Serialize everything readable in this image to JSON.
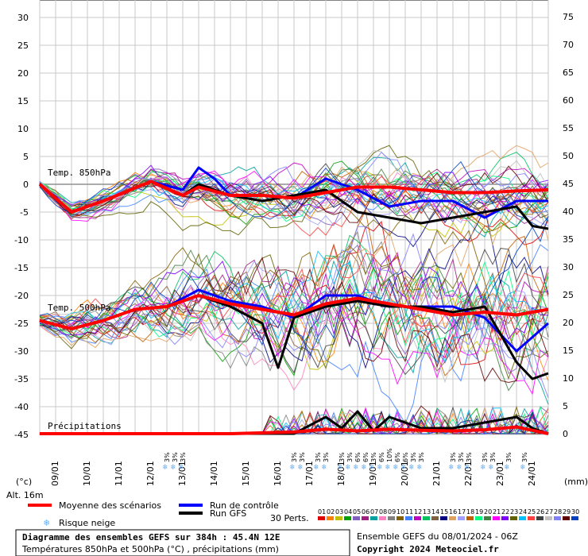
{
  "chart_data": {
    "type": "line",
    "left_axis": {
      "ticks": [
        30,
        25,
        20,
        15,
        10,
        5,
        0,
        -5,
        -10,
        -15,
        -20,
        -25,
        -30,
        -35,
        -40,
        -45
      ],
      "unit_label": "(°c)"
    },
    "right_axis": {
      "ticks": [
        75,
        70,
        65,
        60,
        55,
        50,
        45,
        40,
        35,
        30,
        25,
        20,
        15,
        10,
        5,
        0
      ],
      "unit_label": "(mm)"
    },
    "x_dates": [
      "09/01",
      "10/01",
      "11/01",
      "12/01",
      "13/01",
      "14/01",
      "15/01",
      "16/01",
      "17/01",
      "18/01",
      "19/01",
      "20/01",
      "21/01",
      "22/01",
      "23/01",
      "24/01"
    ],
    "altitude_label": "Alt. 16m",
    "section_labels": {
      "t850": "Temp. 850hPa",
      "t500": "Temp. 500hPa",
      "precip": "Précipitations"
    },
    "snow_risk": [
      {
        "day": 4.0,
        "text": "3%"
      },
      {
        "day": 4.25,
        "text": "3%"
      },
      {
        "day": 4.5,
        "text": "3%"
      },
      {
        "day": 8.0,
        "text": "3%"
      },
      {
        "day": 8.25,
        "text": "3%"
      },
      {
        "day": 8.75,
        "text": "3%"
      },
      {
        "day": 9.0,
        "text": "3%"
      },
      {
        "day": 9.5,
        "text": "3%"
      },
      {
        "day": 9.75,
        "text": "3%"
      },
      {
        "day": 10.0,
        "text": "6%"
      },
      {
        "day": 10.25,
        "text": "6%"
      },
      {
        "day": 10.5,
        "text": "3%"
      },
      {
        "day": 10.75,
        "text": "6%"
      },
      {
        "day": 11.0,
        "text": "10%"
      },
      {
        "day": 11.25,
        "text": "6%"
      },
      {
        "day": 11.5,
        "text": "6%"
      },
      {
        "day": 11.75,
        "text": "3%"
      },
      {
        "day": 12.0,
        "text": "3%"
      },
      {
        "day": 13.0,
        "text": "3%"
      },
      {
        "day": 13.25,
        "text": "3%"
      },
      {
        "day": 13.5,
        "text": "3%"
      },
      {
        "day": 14.0,
        "text": "3%"
      },
      {
        "day": 14.25,
        "text": "3%"
      },
      {
        "day": 14.75,
        "text": "3%"
      },
      {
        "day": 15.25,
        "text": "3%"
      }
    ],
    "series": [
      {
        "name": "Moyenne des scénarios",
        "color": "#ff0000",
        "key": "mean",
        "t850": [
          [
            0,
            0
          ],
          [
            1,
            -5
          ],
          [
            2,
            -3
          ],
          [
            3.5,
            0.5
          ],
          [
            4.5,
            -2
          ],
          [
            5,
            -0.5
          ],
          [
            6,
            -2
          ],
          [
            7,
            -2
          ],
          [
            8,
            -2.5
          ],
          [
            9,
            -1.5
          ],
          [
            10,
            -0.5
          ],
          [
            11,
            -0.5
          ],
          [
            12,
            -1
          ],
          [
            13,
            -1.5
          ],
          [
            14,
            -1.5
          ],
          [
            15,
            -1.2
          ],
          [
            16,
            -1
          ]
        ],
        "t500": [
          [
            0,
            -24.5
          ],
          [
            1,
            -26
          ],
          [
            2,
            -24.5
          ],
          [
            3,
            -22.5
          ],
          [
            4,
            -22
          ],
          [
            5,
            -20
          ],
          [
            6,
            -21.5
          ],
          [
            7,
            -22.5
          ],
          [
            8,
            -23.5
          ],
          [
            9,
            -21.5
          ],
          [
            10,
            -20.5
          ],
          [
            11,
            -21.5
          ],
          [
            12,
            -22.5
          ],
          [
            13,
            -23.5
          ],
          [
            14,
            -23
          ],
          [
            15,
            -23.5
          ],
          [
            16,
            -22.5
          ]
        ],
        "precip": [
          [
            0,
            0
          ],
          [
            6,
            0
          ],
          [
            8,
            0.3
          ],
          [
            9,
            0.8
          ],
          [
            10,
            0.5
          ],
          [
            11,
            0.8
          ],
          [
            12,
            0.6
          ],
          [
            13,
            0.5
          ],
          [
            14,
            0.7
          ],
          [
            15,
            1.2
          ],
          [
            16,
            0
          ]
        ]
      },
      {
        "name": "Run de contrôle",
        "color": "#0000ff",
        "key": "control",
        "t850": [
          [
            0,
            0
          ],
          [
            1,
            -5
          ],
          [
            2,
            -3
          ],
          [
            3.5,
            0.5
          ],
          [
            4.5,
            -1
          ],
          [
            5,
            3
          ],
          [
            5.5,
            1
          ],
          [
            6,
            -2
          ],
          [
            7,
            -2
          ],
          [
            8,
            -2.5
          ],
          [
            9,
            1
          ],
          [
            10,
            -1
          ],
          [
            11,
            -4
          ],
          [
            12,
            -3
          ],
          [
            13,
            -3
          ],
          [
            14,
            -6
          ],
          [
            15,
            -3
          ],
          [
            16,
            -3
          ]
        ],
        "t500": [
          [
            0,
            -24.5
          ],
          [
            1,
            -26
          ],
          [
            2,
            -24.5
          ],
          [
            3,
            -22.5
          ],
          [
            4,
            -22
          ],
          [
            5,
            -19
          ],
          [
            6,
            -21
          ],
          [
            7,
            -22
          ],
          [
            8,
            -24
          ],
          [
            9,
            -20
          ],
          [
            10,
            -20
          ],
          [
            11,
            -22
          ],
          [
            12,
            -22
          ],
          [
            13,
            -22
          ],
          [
            14,
            -24
          ],
          [
            15,
            -30
          ],
          [
            16,
            -25
          ]
        ]
      },
      {
        "name": "Run GFS",
        "color": "#000000",
        "key": "gfs",
        "t850": [
          [
            0,
            0
          ],
          [
            1,
            -5
          ],
          [
            2,
            -3
          ],
          [
            3.5,
            0.5
          ],
          [
            4.5,
            -2
          ],
          [
            5,
            0
          ],
          [
            6,
            -2
          ],
          [
            7,
            -3
          ],
          [
            8,
            -2
          ],
          [
            9,
            -1
          ],
          [
            10,
            -5
          ],
          [
            11,
            -6
          ],
          [
            12,
            -7
          ],
          [
            13,
            -6
          ],
          [
            14,
            -5
          ],
          [
            15,
            -4
          ],
          [
            15.5,
            -7.5
          ],
          [
            16,
            -8
          ]
        ],
        "t500": [
          [
            0,
            -24.5
          ],
          [
            1,
            -26
          ],
          [
            2,
            -24.5
          ],
          [
            3,
            -22.5
          ],
          [
            4,
            -22
          ],
          [
            5,
            -20
          ],
          [
            6,
            -22
          ],
          [
            7,
            -25
          ],
          [
            7.5,
            -33
          ],
          [
            8,
            -24
          ],
          [
            9,
            -22
          ],
          [
            10,
            -21
          ],
          [
            11,
            -22
          ],
          [
            12,
            -22
          ],
          [
            13,
            -23
          ],
          [
            14,
            -22
          ],
          [
            15,
            -32
          ],
          [
            15.5,
            -35
          ],
          [
            16,
            -34
          ]
        ],
        "precip": [
          [
            0,
            0
          ],
          [
            8,
            0
          ],
          [
            9,
            3
          ],
          [
            9.5,
            1
          ],
          [
            10,
            4
          ],
          [
            10.5,
            0.5
          ],
          [
            11,
            3
          ],
          [
            12,
            1
          ],
          [
            13,
            1
          ],
          [
            14,
            2
          ],
          [
            15,
            3
          ],
          [
            15.5,
            1
          ],
          [
            16,
            0
          ]
        ]
      }
    ],
    "perturbations_label": "30 Perts.",
    "perturbation_ids": [
      "01",
      "02",
      "03",
      "04",
      "05",
      "06",
      "07",
      "08",
      "09",
      "10",
      "11",
      "12",
      "13",
      "14",
      "15",
      "16",
      "17",
      "18",
      "19",
      "20",
      "21",
      "22",
      "23",
      "24",
      "25",
      "26",
      "27",
      "28",
      "29",
      "30"
    ],
    "perturbation_colors": [
      "#e00000",
      "#ff8000",
      "#c0c000",
      "#00a000",
      "#8060c0",
      "#a02080",
      "#00a0a0",
      "#ff80c0",
      "#808080",
      "#806000",
      "#4080ff",
      "#c000c0",
      "#00c060",
      "#806040",
      "#000080",
      "#e0a060",
      "#a0a0ff",
      "#c06000",
      "#00ff80",
      "#408040",
      "#ff00ff",
      "#8000ff",
      "#606000",
      "#00c0ff",
      "#ff4040",
      "#404040",
      "#c0c0c0",
      "#8080ff",
      "#600000",
      "#0040c0"
    ]
  },
  "legend": {
    "mean": "Moyenne des scénarios",
    "control": "Run de contrôle",
    "gfs": "Run GFS",
    "snow": "Risque neige"
  },
  "footer": {
    "title": "Diagramme des ensembles GEFS sur 384h : 45.4N 12E",
    "subtitle": "Températures 850hPa et 500hPa (°C) , précipitations (mm)",
    "run": "Ensemble GEFS du 08/01/2024 - 06Z",
    "copyright": "Copyright 2024 Meteociel.fr"
  }
}
